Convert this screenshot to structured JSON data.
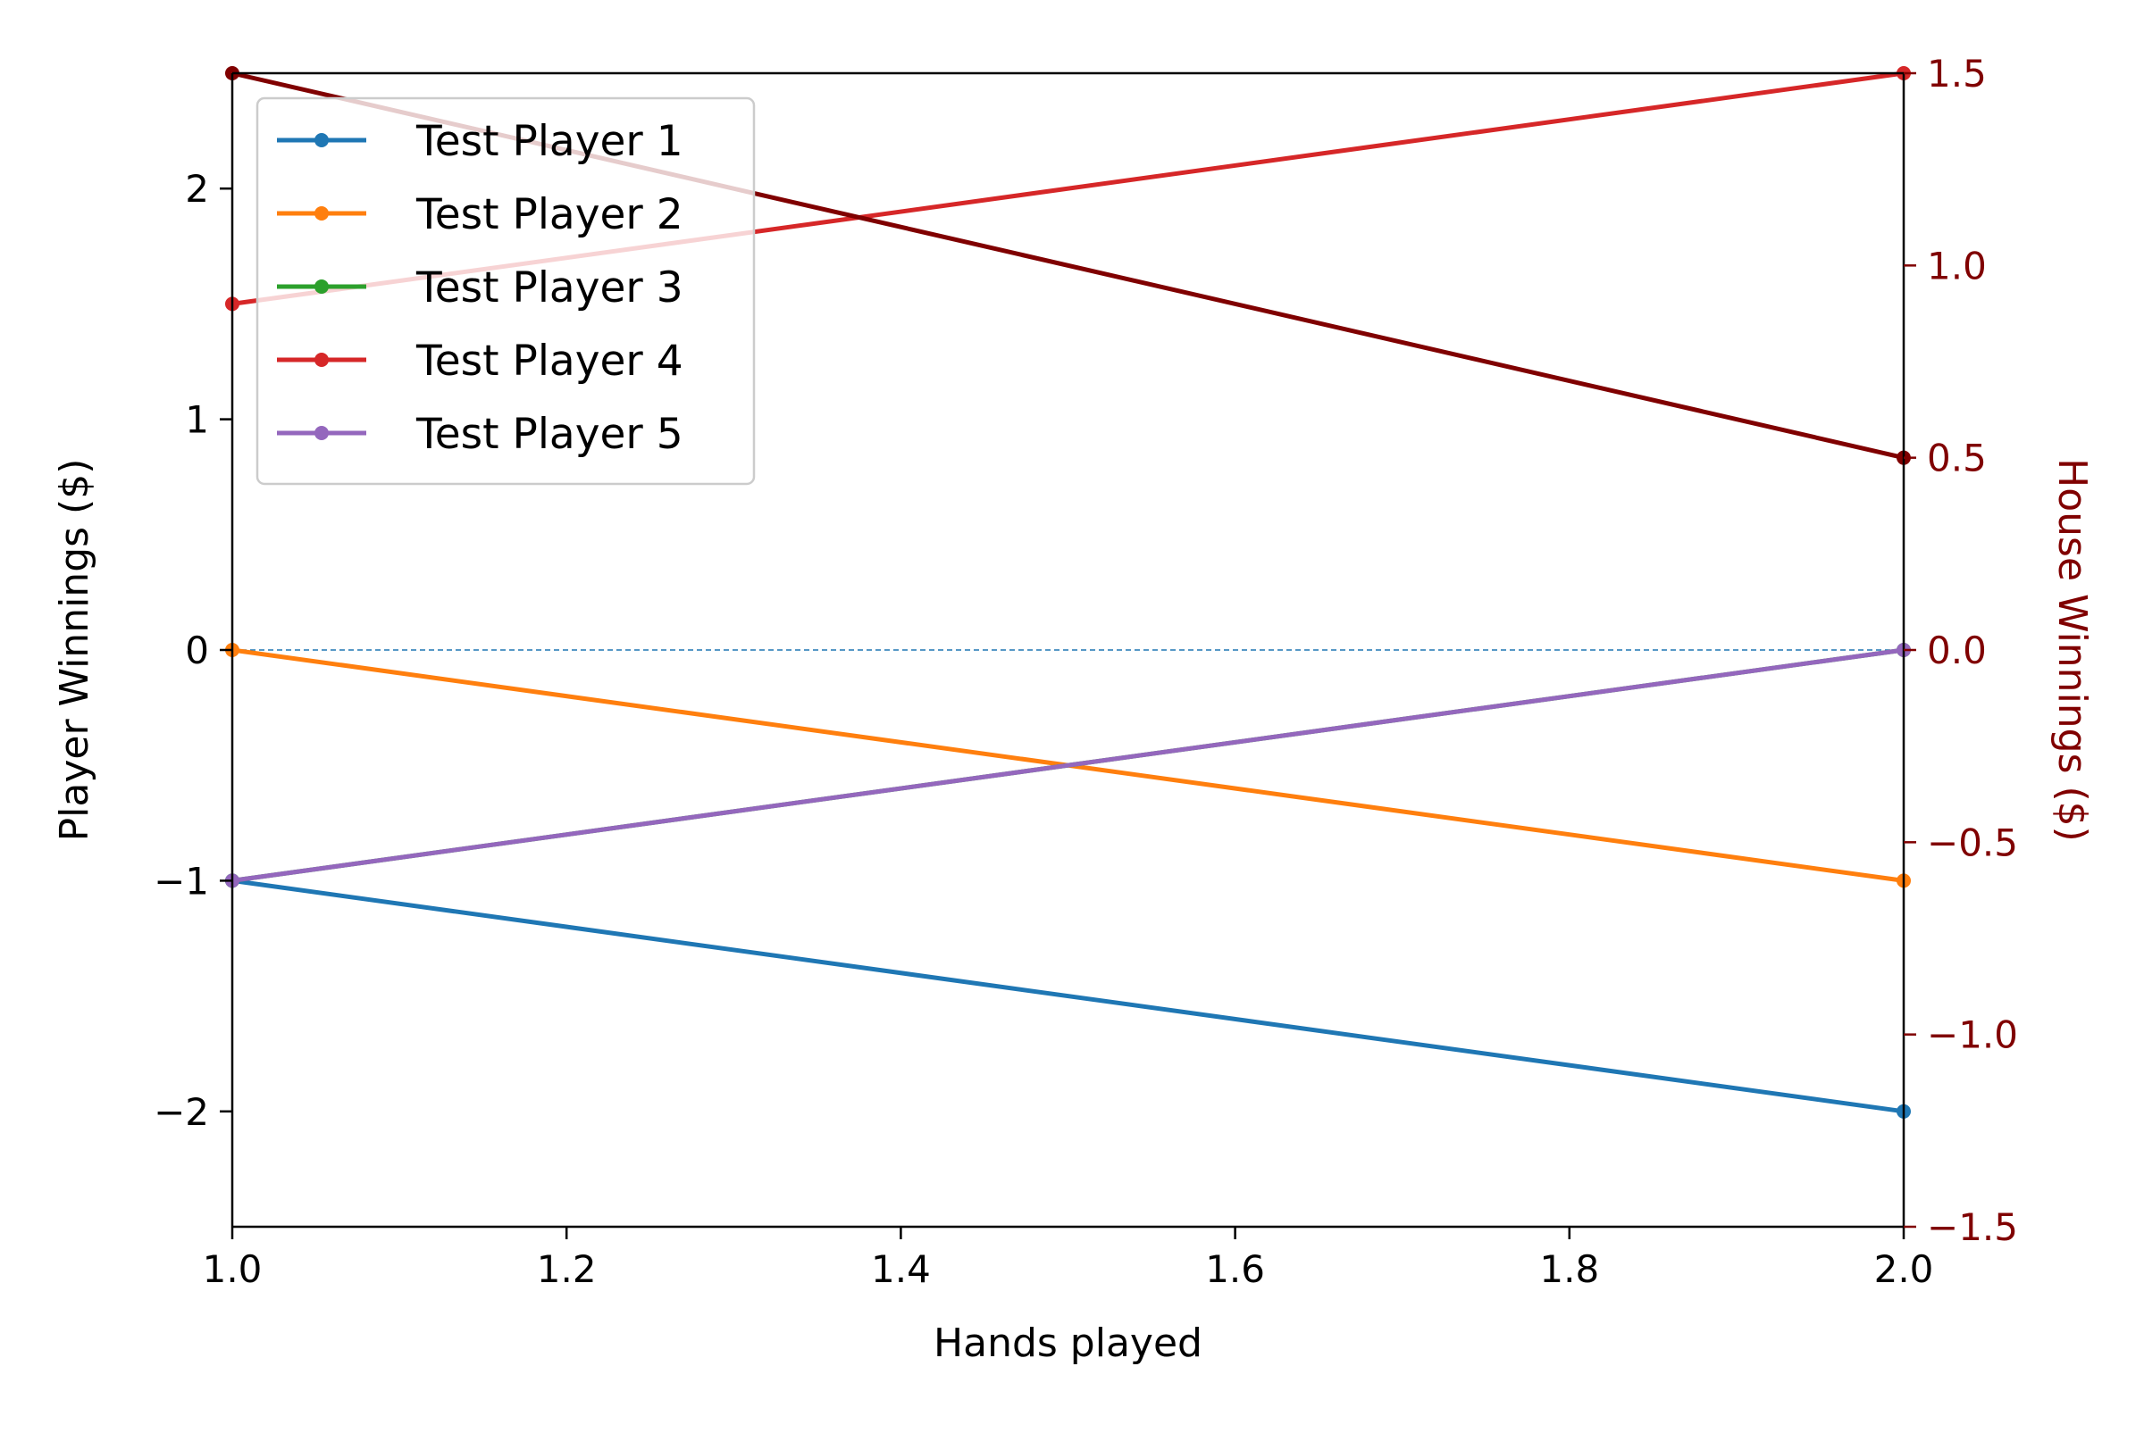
{
  "chart_data": {
    "type": "line",
    "xlabel": "Hands played",
    "ylabel": "Player Winnings ($)",
    "y2label": "House Winnings ($)",
    "xlim": [
      1.0,
      2.0
    ],
    "ylim": [
      -2.5,
      2.5
    ],
    "y2lim": [
      -1.5,
      1.5
    ],
    "xticks": [
      "1.0",
      "1.2",
      "1.4",
      "1.6",
      "1.8",
      "2.0"
    ],
    "yticks": [
      "−2",
      "−1",
      "0",
      "1",
      "2"
    ],
    "y2ticks": [
      "−1.5",
      "−1.0",
      "−0.5",
      "0.0",
      "0.5",
      "1.0",
      "1.5"
    ],
    "zero_line": {
      "y": 0,
      "style": "dashed"
    },
    "legend_position": "upper-left",
    "grid": false,
    "x": [
      1,
      2
    ],
    "series": [
      {
        "name": "Test Player 1",
        "values": [
          -1,
          -2
        ],
        "color": "#1f77b4"
      },
      {
        "name": "Test Player 2",
        "values": [
          0,
          -1
        ],
        "color": "#ff7f0e"
      },
      {
        "name": "Test Player 3",
        "values": [
          -1,
          0
        ],
        "color": "#2ca02c"
      },
      {
        "name": "Test Player 4",
        "values": [
          1.5,
          2.5
        ],
        "color": "#d62728"
      },
      {
        "name": "Test Player 5",
        "values": [
          -1,
          0
        ],
        "color": "#9467bd"
      }
    ],
    "house_series": {
      "values": [
        1.5,
        0.5
      ],
      "color": "#800000",
      "axis": "right"
    }
  }
}
